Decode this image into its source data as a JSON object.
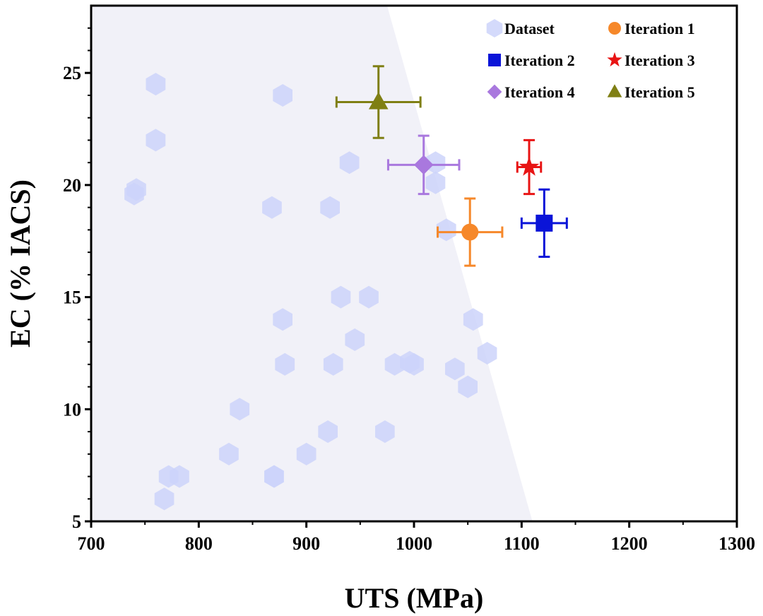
{
  "chart_data": {
    "type": "scatter",
    "xlabel": "UTS (MPa)",
    "ylabel": "EC (% IACS)",
    "xlim": [
      700,
      1300
    ],
    "ylim": [
      5,
      28
    ],
    "x_ticks": [
      "700",
      "800",
      "900",
      "1000",
      "1100",
      "1200",
      "1300"
    ],
    "y_ticks": [
      "5",
      "10",
      "15",
      "20",
      "25"
    ],
    "x_tick_values": [
      700,
      800,
      900,
      1000,
      1100,
      1200,
      1300
    ],
    "y_tick_values": [
      5,
      10,
      15,
      20,
      25
    ],
    "shaded_region": {
      "description": "light gray region left of boundary",
      "boundary": [
        [
          975,
          28
        ],
        [
          1110,
          5
        ]
      ],
      "color": "#f1f1f8"
    },
    "dataset": {
      "name": "Dataset",
      "color": "#cdd3fa",
      "marker": "hexagon",
      "points": [
        [
          760,
          24.5
        ],
        [
          878,
          24
        ],
        [
          760,
          22
        ],
        [
          742,
          19.8
        ],
        [
          740,
          19.6
        ],
        [
          868,
          19
        ],
        [
          922,
          19
        ],
        [
          940,
          21
        ],
        [
          1020,
          21
        ],
        [
          1020,
          20.1
        ],
        [
          1030,
          18
        ],
        [
          932,
          15
        ],
        [
          958,
          15
        ],
        [
          878,
          14
        ],
        [
          1055,
          14
        ],
        [
          945,
          13.1
        ],
        [
          1068,
          12.5
        ],
        [
          880,
          12
        ],
        [
          925,
          12
        ],
        [
          982,
          12
        ],
        [
          996,
          12.1
        ],
        [
          1000,
          12
        ],
        [
          1038,
          11.8
        ],
        [
          1050,
          11
        ],
        [
          838,
          10
        ],
        [
          920,
          9
        ],
        [
          973,
          9
        ],
        [
          828,
          8
        ],
        [
          900,
          8
        ],
        [
          870,
          7
        ],
        [
          870,
          7
        ],
        [
          772,
          7
        ],
        [
          782,
          7
        ],
        [
          768,
          6
        ]
      ]
    },
    "iterations": [
      {
        "name": "Iteration  1",
        "marker": "circle",
        "color": "#f6882a",
        "x": 1052,
        "y": 17.9,
        "xerr": 30,
        "yerr": 1.5
      },
      {
        "name": "Iteration  2",
        "marker": "square",
        "color": "#0a14d8",
        "x": 1121,
        "y": 18.3,
        "xerr": 21,
        "yerr": 1.5
      },
      {
        "name": "Iteration  3",
        "marker": "star",
        "color": "#e81414",
        "x": 1107,
        "y": 20.8,
        "xerr": 11,
        "yerr": 1.2
      },
      {
        "name": "Iteration  4",
        "marker": "diamond",
        "color": "#a978de",
        "x": 1009,
        "y": 20.9,
        "xerr": 33,
        "yerr": 1.3
      },
      {
        "name": "Iteration  5",
        "marker": "triangle",
        "color": "#7f7f14",
        "x": 967,
        "y": 23.7,
        "xerr": 39,
        "yerr": 1.6
      }
    ],
    "legend": {
      "placement": "top-right",
      "entries": [
        {
          "label": "Dataset",
          "marker": "hexagon",
          "color": "#cdd3fa"
        },
        {
          "label": "Iteration  1",
          "marker": "circle",
          "color": "#f6882a"
        },
        {
          "label": "Iteration  2",
          "marker": "square",
          "color": "#0a14d8"
        },
        {
          "label": "Iteration  3",
          "marker": "star",
          "color": "#e81414"
        },
        {
          "label": "Iteration  4",
          "marker": "diamond",
          "color": "#a978de"
        },
        {
          "label": "Iteration  5",
          "marker": "triangle",
          "color": "#7f7f14"
        }
      ]
    }
  }
}
